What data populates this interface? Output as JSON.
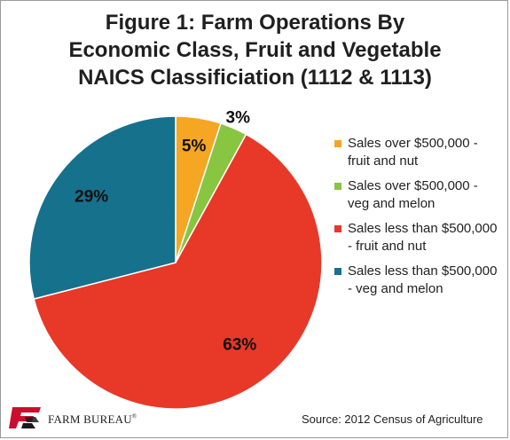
{
  "chart_data": {
    "type": "pie",
    "title": "Figure 1: Farm Operations By\nEconomic Class, Fruit and Vegetable\nNAICS Classificiation (1112 & 1113)",
    "categories": [
      "Sales over $500,000 - fruit and nut",
      "Sales over $500,000 - veg and melon",
      "Sales less than $500,000 - fruit and nut",
      "Sales less than $500,000 - veg and melon"
    ],
    "values": [
      5,
      3,
      63,
      29
    ],
    "labels": [
      "5%",
      "3%",
      "63%",
      "29%"
    ],
    "colors": [
      "#f5a623",
      "#88c540",
      "#e83828",
      "#16718c"
    ],
    "legend_position": "right"
  },
  "footer": {
    "logo_text": "FARM BUREAU",
    "logo_mark": "®",
    "source": "Source: 2012 Census of Agriculture"
  }
}
